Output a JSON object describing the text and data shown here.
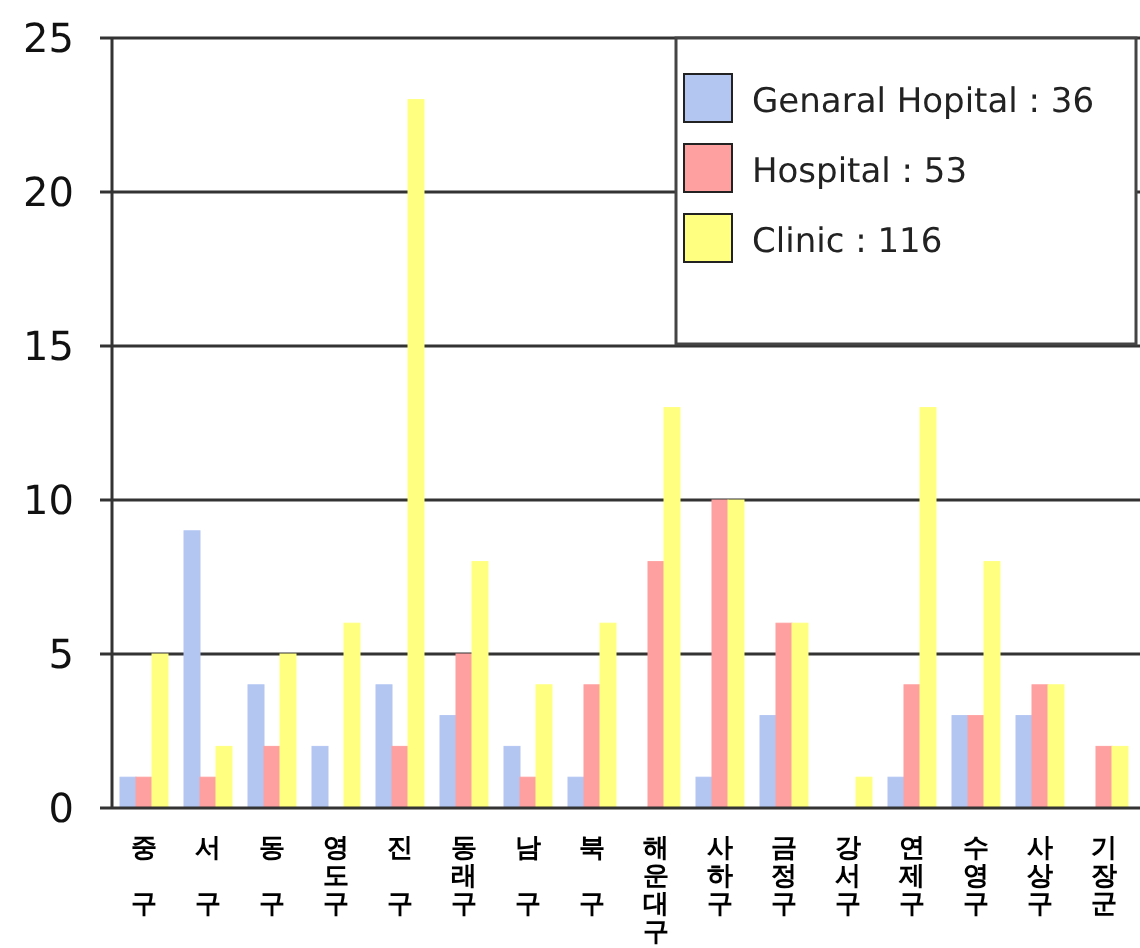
{
  "chart_data": {
    "type": "bar",
    "categories": [
      "중구",
      "서구",
      "동구",
      "영도구",
      "진구",
      "동래구",
      "남구",
      "북구",
      "해운대구",
      "사하구",
      "금정구",
      "강서구",
      "연제구",
      "수영구",
      "사상구",
      "기장군"
    ],
    "series": [
      {
        "name": "Genaral Hopital : 36",
        "color": "#b3c6f2",
        "values": [
          1,
          9,
          4,
          2,
          4,
          3,
          2,
          1,
          0,
          1,
          3,
          0,
          1,
          3,
          3,
          0
        ]
      },
      {
        "name": "Hospital : 53",
        "color": "#ffa0a0",
        "values": [
          1,
          1,
          2,
          0,
          2,
          5,
          1,
          4,
          8,
          10,
          6,
          0,
          4,
          3,
          4,
          2
        ]
      },
      {
        "name": "Clinic : 116",
        "color": "#ffff80",
        "values": [
          5,
          2,
          5,
          6,
          23,
          8,
          4,
          6,
          13,
          10,
          6,
          1,
          13,
          8,
          4,
          2
        ]
      }
    ],
    "ylim": [
      0,
      25
    ],
    "yticks": [
      0,
      5,
      10,
      15,
      20,
      25
    ],
    "grid": "y",
    "legend": "top right"
  }
}
